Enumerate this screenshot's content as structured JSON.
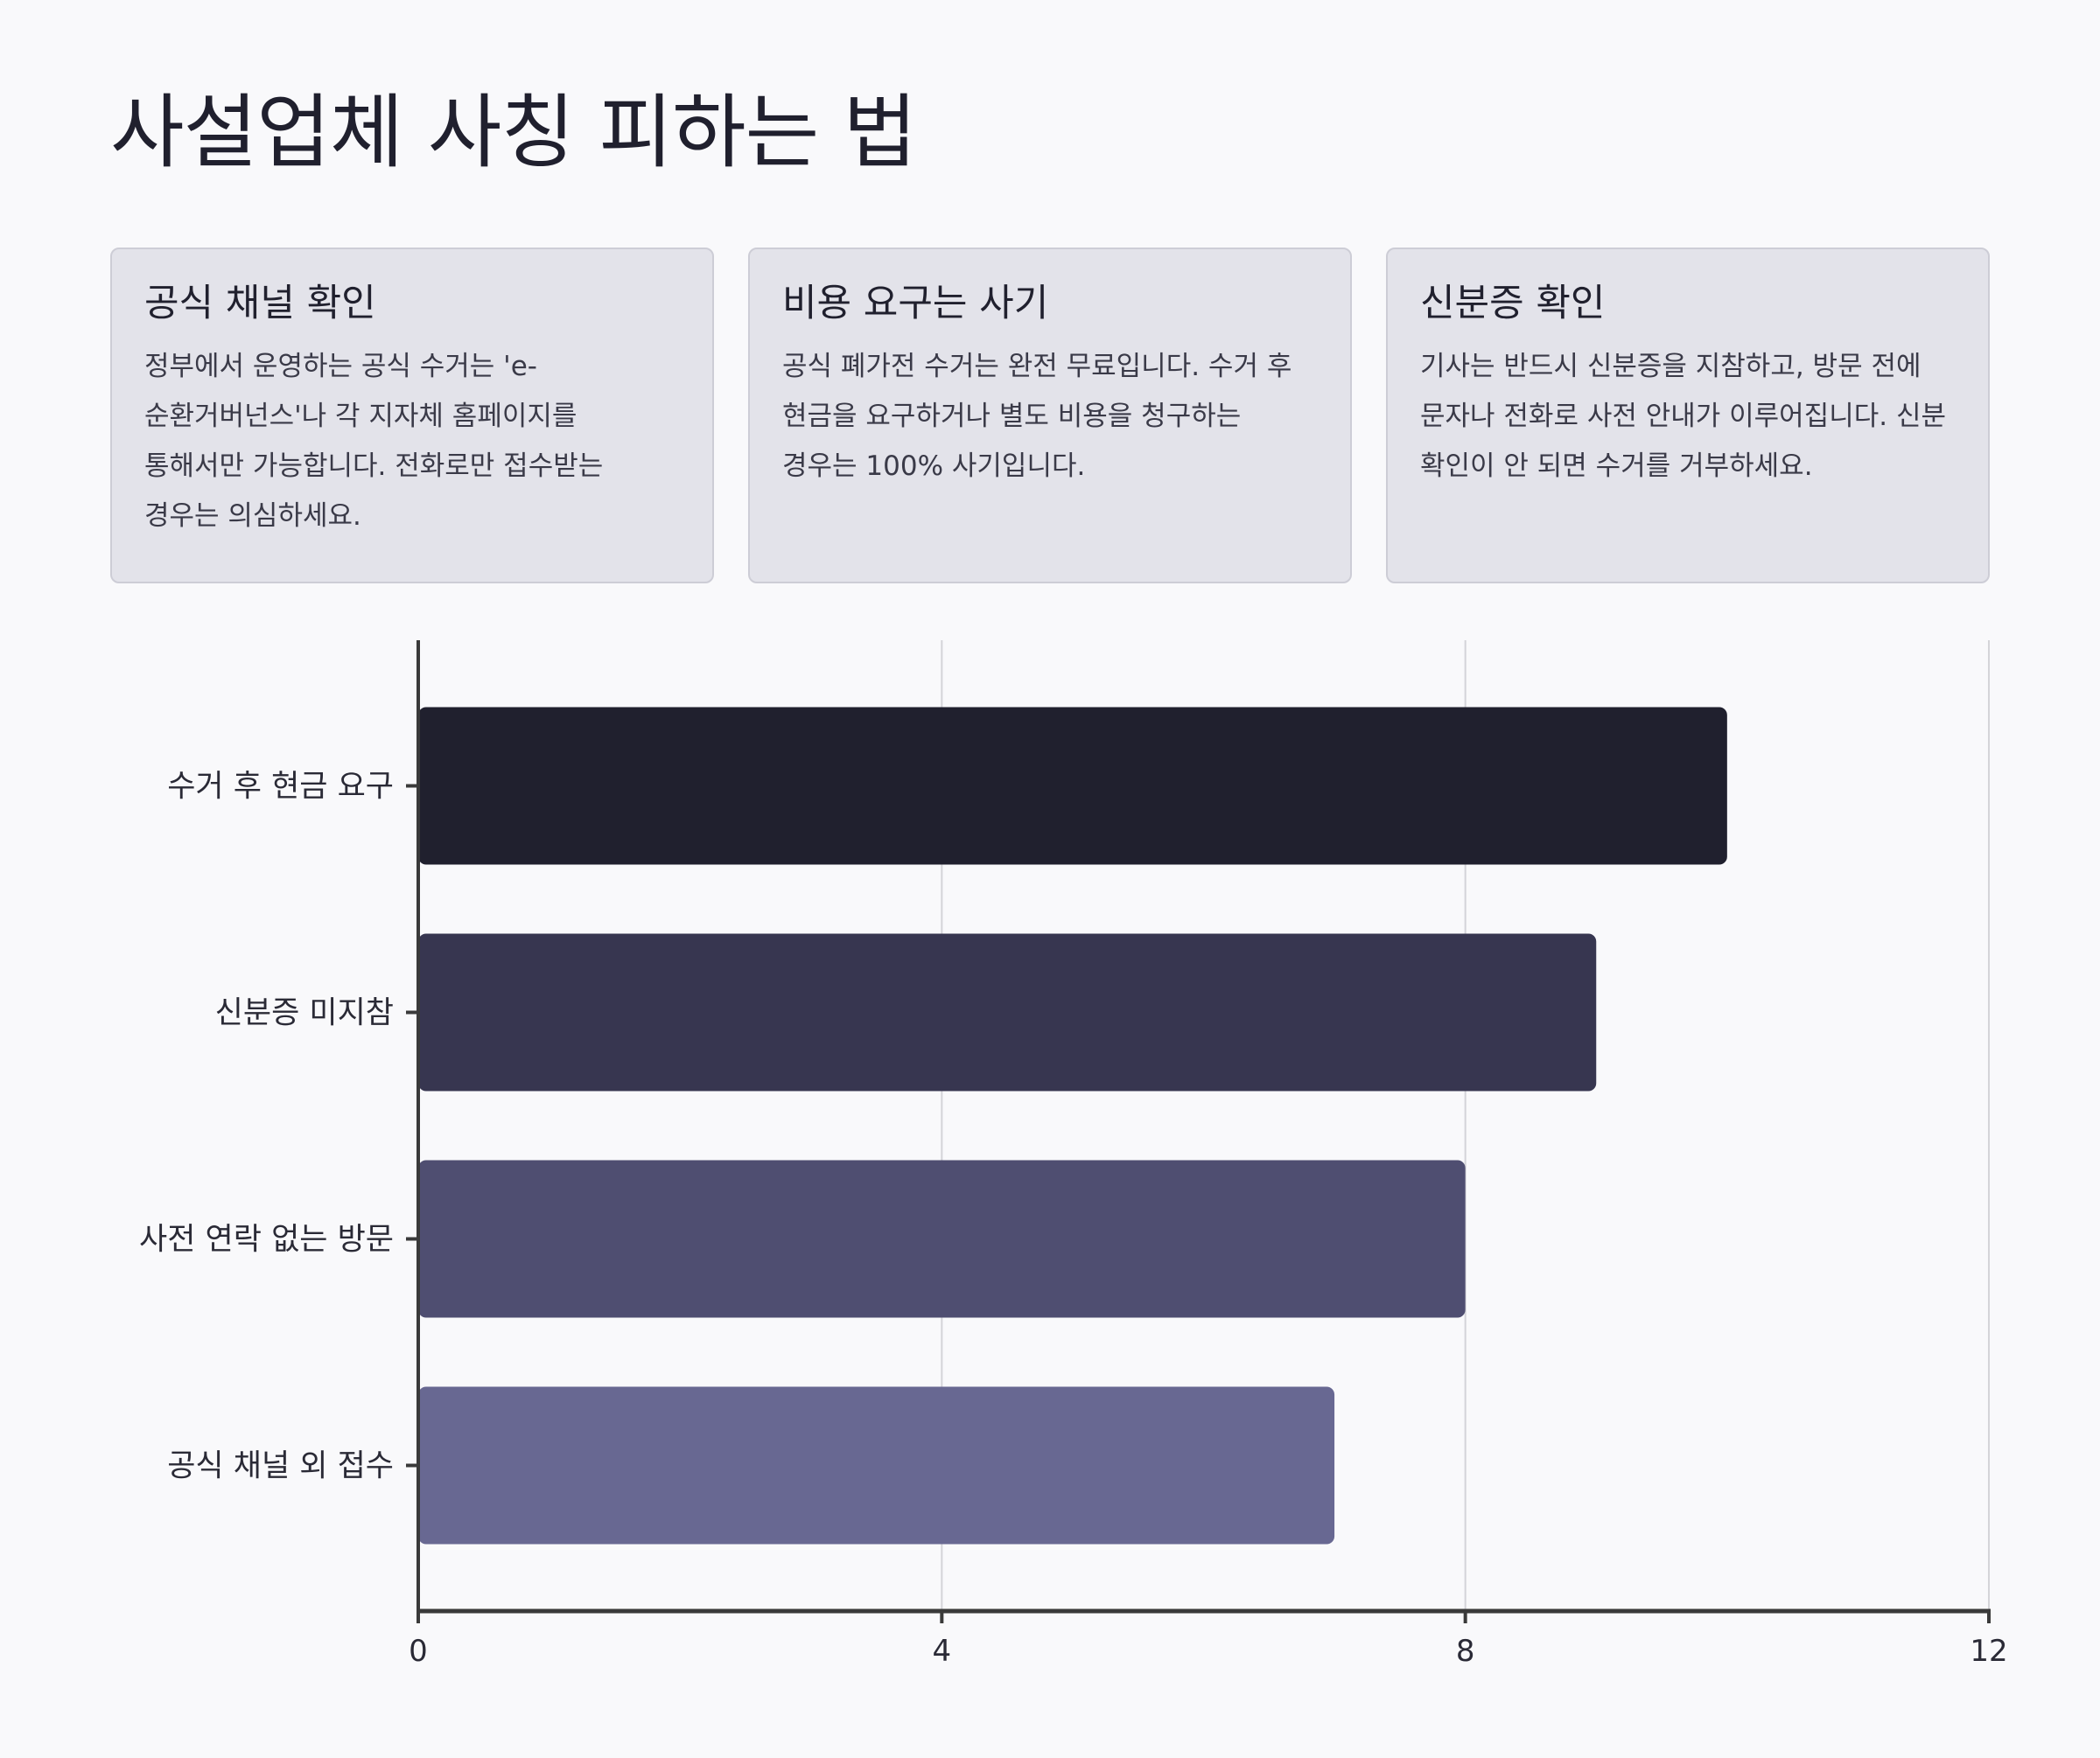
{
  "title": "사설업체 사칭 피하는 법",
  "cards": [
    {
      "title": "공식 채널 확인",
      "body": "정부에서 운영하는 공식 수거는 'e-순환거버넌스'나 각 지자체 홈페이지를 통해서만 가능합니다. 전화로만 접수받는 경우는 의심하세요."
    },
    {
      "title": "비용 요구는 사기",
      "body": "공식 폐가전 수거는 완전 무료입니다. 수거 후 현금을 요구하거나 별도 비용을 청구하는 경우는 100% 사기입니다."
    },
    {
      "title": "신분증 확인",
      "body": "기사는 반드시 신분증을 지참하고, 방문 전에 문자나 전화로 사전 안내가 이루어집니다. 신분 확인이 안 되면 수거를 거부하세요."
    }
  ],
  "chart_data": {
    "type": "bar",
    "orientation": "horizontal",
    "categories": [
      "수거 후 현금 요구",
      "신분증 미지참",
      "사전 연락 없는 방문",
      "공식 채널 외 접수"
    ],
    "values": [
      10,
      9,
      8,
      7
    ],
    "xlim": [
      0,
      12
    ],
    "xticks": [
      0,
      4,
      8,
      12
    ],
    "grid": "vertical",
    "colors": [
      "#20202e",
      "#373650",
      "#4f4e71",
      "#686892"
    ],
    "axis_color": "#3a3a3a",
    "grid_color": "#d4d4d8"
  }
}
